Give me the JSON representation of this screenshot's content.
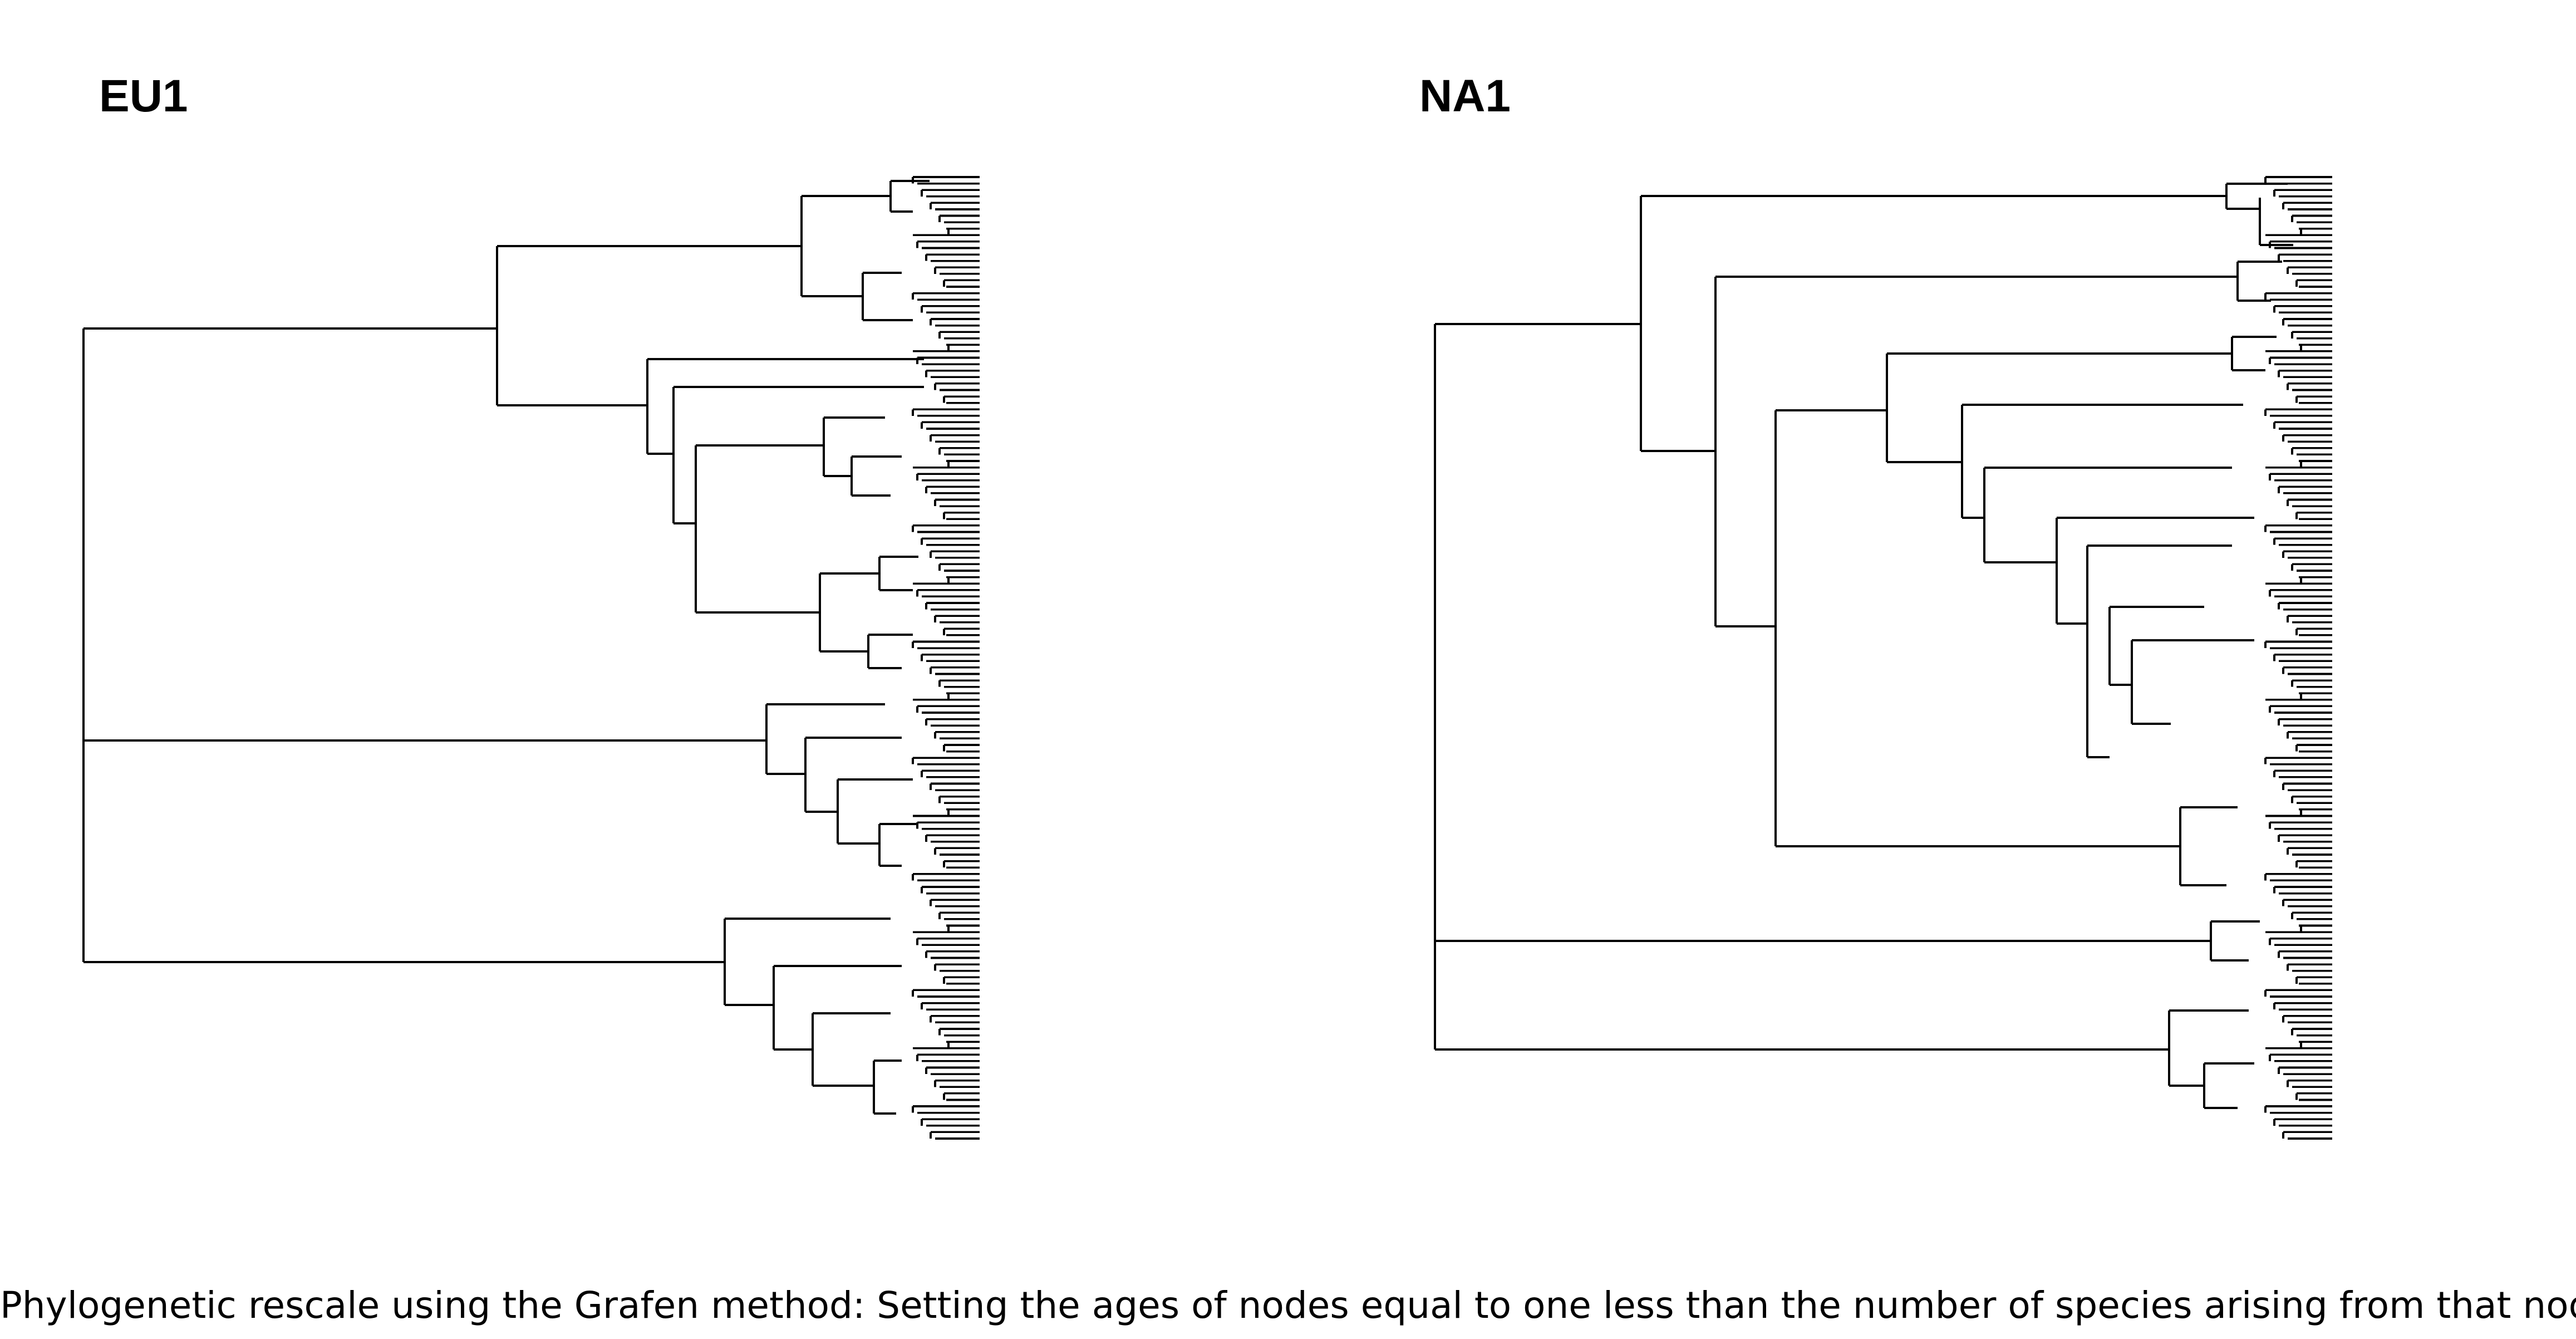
{
  "panels": [
    {
      "id": "eu1",
      "title": "EU1",
      "tip_count": 150
    },
    {
      "id": "na1",
      "title": "NA1",
      "tip_count": 150
    }
  ],
  "caption": "Phylogenetic rescale using the Grafen method: Setting the ages of nodes equal to one less than the number of species arising from that node",
  "colors": {
    "branch": "#000000",
    "background": "#ffffff"
  }
}
